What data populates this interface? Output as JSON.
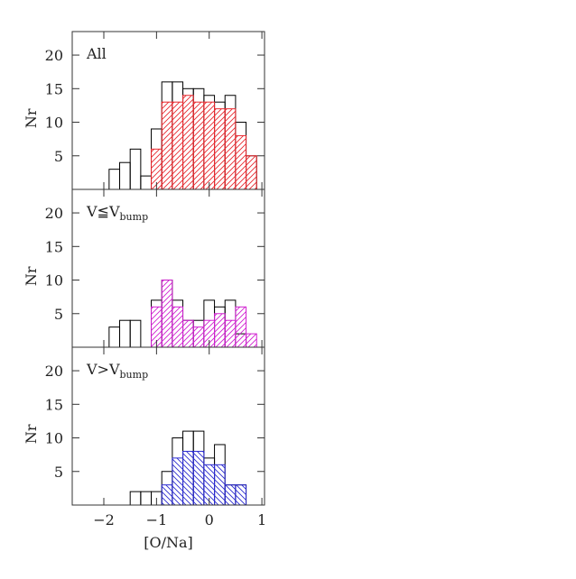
{
  "chart_data": [
    {
      "type": "histogram",
      "ylabel": "Nr",
      "label": "All",
      "bins": [
        -1.9,
        -1.7,
        -1.5,
        -1.3,
        -1.1,
        -0.9,
        -0.7,
        -0.5,
        -0.3,
        -0.1,
        0.1,
        0.3,
        0.5,
        0.7,
        0.9
      ],
      "series": [
        {
          "color": "#000000",
          "values": [
            3,
            4,
            6,
            2,
            9,
            16,
            16,
            15,
            15,
            14,
            13,
            14,
            10,
            5
          ]
        },
        {
          "color": "#e8282e",
          "hatch": "/",
          "values": [
            0,
            0,
            0,
            0,
            6,
            13,
            13,
            14,
            13,
            13,
            12,
            12,
            8,
            5
          ]
        }
      ],
      "xlim": [
        -2.6,
        1.05
      ],
      "ylim": [
        0,
        23.5
      ],
      "xticks": [
        {
          "value": -2,
          "label": "−2"
        },
        {
          "value": -1,
          "label": "−1"
        },
        0,
        1
      ],
      "yticks": [
        5,
        10,
        15,
        20
      ]
    },
    {
      "type": "histogram",
      "ylabel": "Nr",
      "label": "V≦V",
      "label_sub": "bump",
      "bins": [
        -1.9,
        -1.7,
        -1.5,
        -1.3,
        -1.1,
        -0.9,
        -0.7,
        -0.5,
        -0.3,
        -0.1,
        0.1,
        0.3,
        0.5,
        0.7,
        0.9
      ],
      "series": [
        {
          "color": "#000000",
          "values": [
            3,
            4,
            4,
            0,
            7,
            10,
            7,
            4,
            4,
            7,
            6,
            7,
            2,
            0
          ]
        },
        {
          "color": "#d020d0",
          "hatch": "/",
          "values": [
            0,
            0,
            0,
            0,
            6,
            10,
            6,
            4,
            3,
            4,
            5,
            4,
            6,
            2
          ]
        }
      ],
      "xlim": [
        -2.6,
        1.05
      ],
      "ylim": [
        0,
        23.5
      ],
      "xticks": [
        {
          "value": -2,
          "label": "−2"
        },
        {
          "value": -1,
          "label": "−1"
        },
        0,
        1
      ],
      "yticks": [
        5,
        10,
        15,
        20
      ]
    },
    {
      "type": "histogram",
      "ylabel": "Nr",
      "xlabel": "[O/Na]",
      "label": "V>V",
      "label_sub": "bump",
      "bins": [
        -1.9,
        -1.7,
        -1.5,
        -1.3,
        -1.1,
        -0.9,
        -0.7,
        -0.5,
        -0.3,
        -0.1,
        0.1,
        0.3,
        0.5,
        0.7,
        0.9
      ],
      "series": [
        {
          "color": "#000000",
          "values": [
            0,
            0,
            2,
            2,
            2,
            5,
            10,
            11,
            11,
            7,
            9,
            3,
            3,
            0
          ]
        },
        {
          "color": "#2a2ad0",
          "hatch": "\\",
          "values": [
            0,
            0,
            0,
            0,
            0,
            3,
            7,
            8,
            8,
            6,
            6,
            3,
            3,
            0
          ]
        }
      ],
      "xlim": [
        -2.6,
        1.05
      ],
      "ylim": [
        0,
        23.5
      ],
      "xticks": [
        {
          "value": -2,
          "label": "−2"
        },
        {
          "value": -1,
          "label": "−1"
        },
        0,
        1
      ],
      "yticks": [
        5,
        10,
        15,
        20
      ]
    }
  ]
}
